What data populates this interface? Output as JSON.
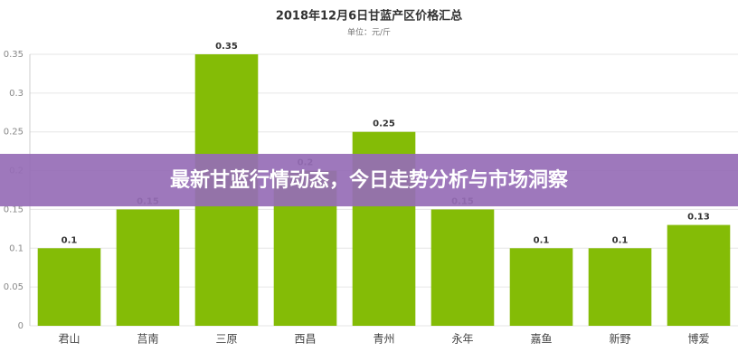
{
  "chart_data": {
    "type": "bar",
    "title": "2018年12月6日甘蓝产区价格汇总",
    "subtitle": "单位：元/斤",
    "categories": [
      "君山",
      "莒南",
      "三原",
      "西昌",
      "青州",
      "永年",
      "嘉鱼",
      "新野",
      "博爱"
    ],
    "values": [
      0.1,
      0.15,
      0.35,
      0.2,
      0.25,
      0.15,
      0.1,
      0.1,
      0.13
    ],
    "color": "#84bc06",
    "ylim": [
      0,
      0.35
    ],
    "yticks": [
      0,
      0.05,
      0.1,
      0.15,
      0.2,
      0.25,
      0.3,
      0.35
    ],
    "grid": true
  },
  "overlay_title": "最新甘蓝行情动态，今日走势分析与市场洞察"
}
